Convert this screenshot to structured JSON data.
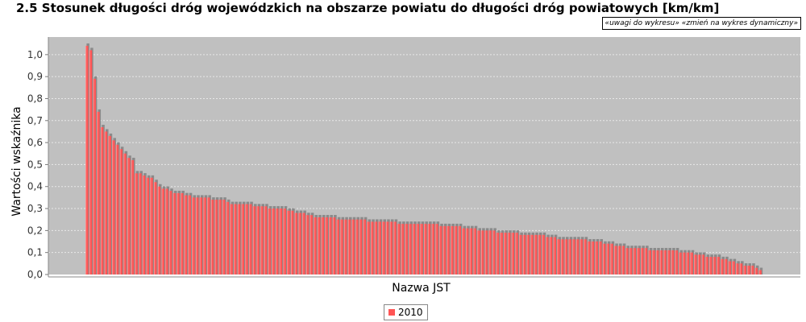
{
  "header": {
    "title": "2.5 Stosunek długości dróg wojewódzkich na obszarze powiatu do długości dróg powiatowych [km/km]",
    "links": [
      {
        "label": "«uwagi do wykresu»"
      },
      {
        "label": "«zmień na wykres dynamiczny»"
      }
    ]
  },
  "colors": {
    "plot_background": "#c0c0c0",
    "bar_fill": "#ff5555",
    "bar_highlight": "#ff8a8a",
    "bar_shadow": "#8a8a8a",
    "gridline": "#e8e8e8"
  },
  "chart_data": {
    "type": "bar",
    "title": "2.5 Stosunek długości dróg wojewódzkich na obszarze powiatu do długości dróg powiatowych [km/km]",
    "xlabel": "Nazwa JST",
    "ylabel": "Wartości wskaźnika",
    "ylim": [
      0,
      1.08
    ],
    "yticks": [
      "0,0",
      "0,1",
      "0,2",
      "0,3",
      "0,4",
      "0,5",
      "0,6",
      "0,7",
      "0,8",
      "0,9",
      "1,0"
    ],
    "ytick_values": [
      0,
      0.1,
      0.2,
      0.3,
      0.4,
      0.5,
      0.6,
      0.7,
      0.8,
      0.9,
      1.0
    ],
    "grid": true,
    "legend_position": "bottom-center",
    "series": [
      {
        "name": "2010",
        "values": [
          1.04,
          1.02,
          0.89,
          0.74,
          0.67,
          0.65,
          0.63,
          0.61,
          0.59,
          0.57,
          0.55,
          0.53,
          0.52,
          0.46,
          0.46,
          0.45,
          0.44,
          0.44,
          0.42,
          0.4,
          0.39,
          0.39,
          0.38,
          0.37,
          0.37,
          0.37,
          0.36,
          0.36,
          0.35,
          0.35,
          0.35,
          0.35,
          0.35,
          0.34,
          0.34,
          0.34,
          0.34,
          0.33,
          0.32,
          0.32,
          0.32,
          0.32,
          0.32,
          0.32,
          0.31,
          0.31,
          0.31,
          0.31,
          0.3,
          0.3,
          0.3,
          0.3,
          0.3,
          0.29,
          0.29,
          0.28,
          0.28,
          0.28,
          0.27,
          0.27,
          0.26,
          0.26,
          0.26,
          0.26,
          0.26,
          0.26,
          0.25,
          0.25,
          0.25,
          0.25,
          0.25,
          0.25,
          0.25,
          0.25,
          0.24,
          0.24,
          0.24,
          0.24,
          0.24,
          0.24,
          0.24,
          0.24,
          0.23,
          0.23,
          0.23,
          0.23,
          0.23,
          0.23,
          0.23,
          0.23,
          0.23,
          0.23,
          0.23,
          0.22,
          0.22,
          0.22,
          0.22,
          0.22,
          0.22,
          0.21,
          0.21,
          0.21,
          0.21,
          0.2,
          0.2,
          0.2,
          0.2,
          0.2,
          0.19,
          0.19,
          0.19,
          0.19,
          0.19,
          0.19,
          0.18,
          0.18,
          0.18,
          0.18,
          0.18,
          0.18,
          0.18,
          0.17,
          0.17,
          0.17,
          0.16,
          0.16,
          0.16,
          0.16,
          0.16,
          0.16,
          0.16,
          0.16,
          0.15,
          0.15,
          0.15,
          0.15,
          0.14,
          0.14,
          0.14,
          0.13,
          0.13,
          0.13,
          0.12,
          0.12,
          0.12,
          0.12,
          0.12,
          0.12,
          0.11,
          0.11,
          0.11,
          0.11,
          0.11,
          0.11,
          0.11,
          0.11,
          0.1,
          0.1,
          0.1,
          0.1,
          0.09,
          0.09,
          0.09,
          0.08,
          0.08,
          0.08,
          0.08,
          0.07,
          0.07,
          0.06,
          0.06,
          0.05,
          0.05,
          0.04,
          0.04,
          0.04,
          0.03,
          0.02
        ]
      }
    ]
  }
}
